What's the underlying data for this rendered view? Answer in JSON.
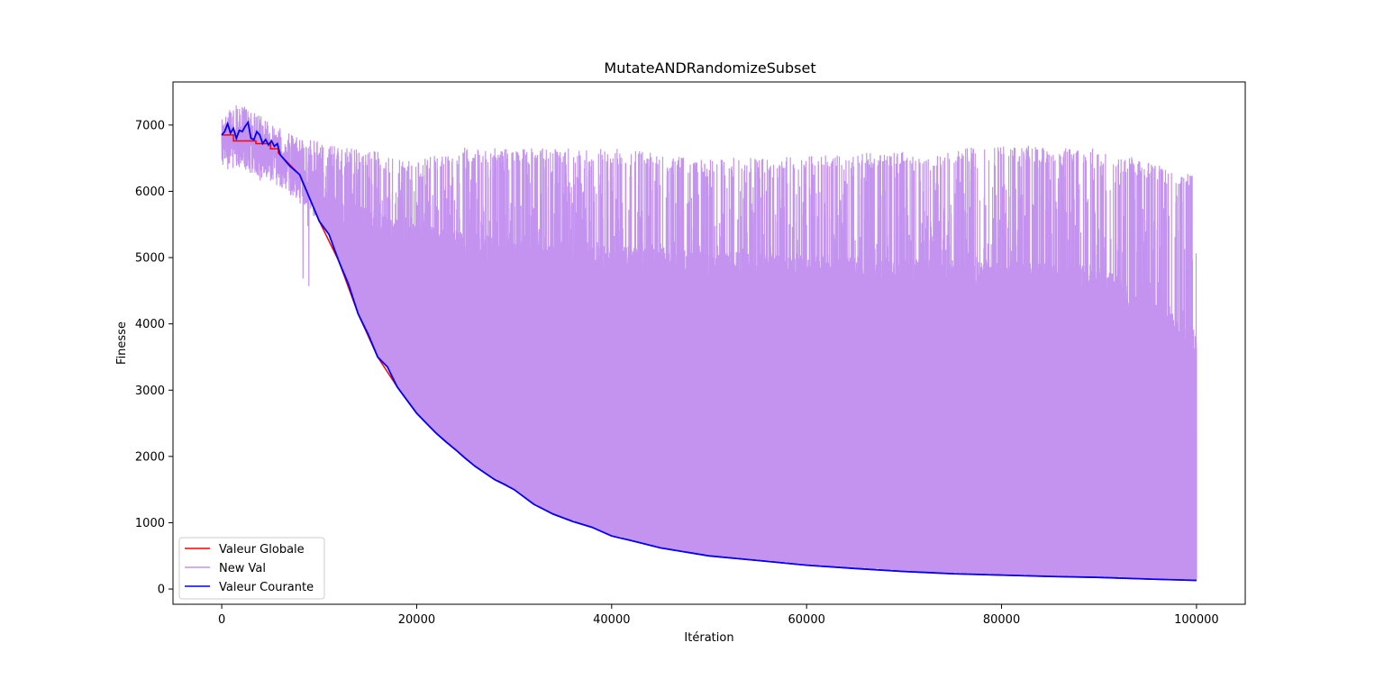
{
  "chart_data": {
    "type": "line",
    "title": "MutateANDRandomizeSubset",
    "xlabel": "Itération",
    "ylabel": "Finesse",
    "xlim": [
      -5000,
      105000
    ],
    "ylim": [
      -230,
      7650
    ],
    "grid": false,
    "legend_position": "lower-left",
    "x_ticks": [
      0,
      20000,
      40000,
      60000,
      80000,
      100000
    ],
    "x_tick_labels": [
      "0",
      "20000",
      "40000",
      "60000",
      "80000",
      "100000"
    ],
    "y_ticks": [
      0,
      1000,
      2000,
      3000,
      4000,
      5000,
      6000,
      7000
    ],
    "y_tick_labels": [
      "0",
      "1000",
      "2000",
      "3000",
      "4000",
      "5000",
      "6000",
      "7000"
    ],
    "series": [
      {
        "name": "Valeur Globale",
        "color": "#ff0000",
        "x": [
          0,
          1200,
          1200,
          3500,
          3500,
          5000,
          5000,
          5800,
          5800,
          8000,
          10000,
          12000,
          14000,
          16000,
          18000,
          20000,
          22000,
          24000,
          26000,
          28000,
          30000,
          32000,
          34000,
          36000,
          38000,
          40000,
          42000,
          45000,
          50000,
          55000,
          60000,
          65000,
          70000,
          75000,
          80000,
          85000,
          90000,
          95000,
          100000
        ],
        "y": [
          6850,
          6850,
          6760,
          6760,
          6720,
          6720,
          6640,
          6640,
          6580,
          6250,
          5550,
          4950,
          4150,
          3500,
          3050,
          2650,
          2350,
          2100,
          1850,
          1650,
          1500,
          1280,
          1130,
          1020,
          930,
          800,
          730,
          620,
          500,
          430,
          360,
          310,
          265,
          230,
          210,
          190,
          175,
          150,
          130
        ]
      },
      {
        "name": "New Val",
        "color": "#c393ef",
        "envelope_x": [
          0,
          1000,
          2000,
          3000,
          4000,
          5000,
          6000,
          8000,
          10000,
          12000,
          14000,
          16000,
          18000,
          20000,
          25000,
          30000,
          40000,
          50000,
          60000,
          70000,
          80000,
          90000,
          100000
        ],
        "envelope_upper": [
          7100,
          7330,
          7300,
          7250,
          7150,
          7000,
          6950,
          6800,
          6750,
          6700,
          6650,
          6600,
          6500,
          6450,
          6700,
          6650,
          6650,
          6500,
          6550,
          6600,
          6700,
          6650,
          6250
        ],
        "envelope_lower_typical": [
          6900,
          6950,
          6900,
          6850,
          6750,
          6700,
          6650,
          6400,
          6150,
          5900,
          5800,
          5700,
          5600,
          5500,
          5400,
          5300,
          5200,
          5100,
          5050,
          5000,
          4950,
          4900,
          3900
        ]
      },
      {
        "name": "Valeur Courante",
        "color": "#0000ff",
        "x": [
          0,
          300,
          600,
          900,
          1200,
          1500,
          1800,
          2100,
          2400,
          2700,
          3000,
          3300,
          3600,
          3900,
          4200,
          4500,
          4800,
          5100,
          5400,
          5700,
          6000,
          7000,
          8000,
          9000,
          10000,
          11000,
          12000,
          13000,
          14000,
          15000,
          16000,
          17000,
          18000,
          19000,
          20000,
          21000,
          22000,
          23000,
          24000,
          25000,
          26000,
          27000,
          28000,
          29000,
          30000,
          32000,
          34000,
          36000,
          38000,
          40000,
          42000,
          45000,
          50000,
          55000,
          60000,
          65000,
          70000,
          75000,
          80000,
          85000,
          90000,
          95000,
          100000
        ],
        "y": [
          6850,
          6900,
          7020,
          6880,
          6950,
          6800,
          6920,
          6900,
          6980,
          7040,
          6800,
          6780,
          6900,
          6850,
          6720,
          6780,
          6700,
          6760,
          6680,
          6720,
          6550,
          6380,
          6250,
          5900,
          5550,
          5350,
          4950,
          4600,
          4150,
          3850,
          3500,
          3350,
          3050,
          2850,
          2650,
          2500,
          2350,
          2220,
          2100,
          1970,
          1850,
          1750,
          1650,
          1580,
          1500,
          1280,
          1130,
          1020,
          930,
          800,
          730,
          620,
          500,
          430,
          360,
          310,
          265,
          230,
          210,
          190,
          175,
          150,
          130
        ]
      }
    ]
  }
}
